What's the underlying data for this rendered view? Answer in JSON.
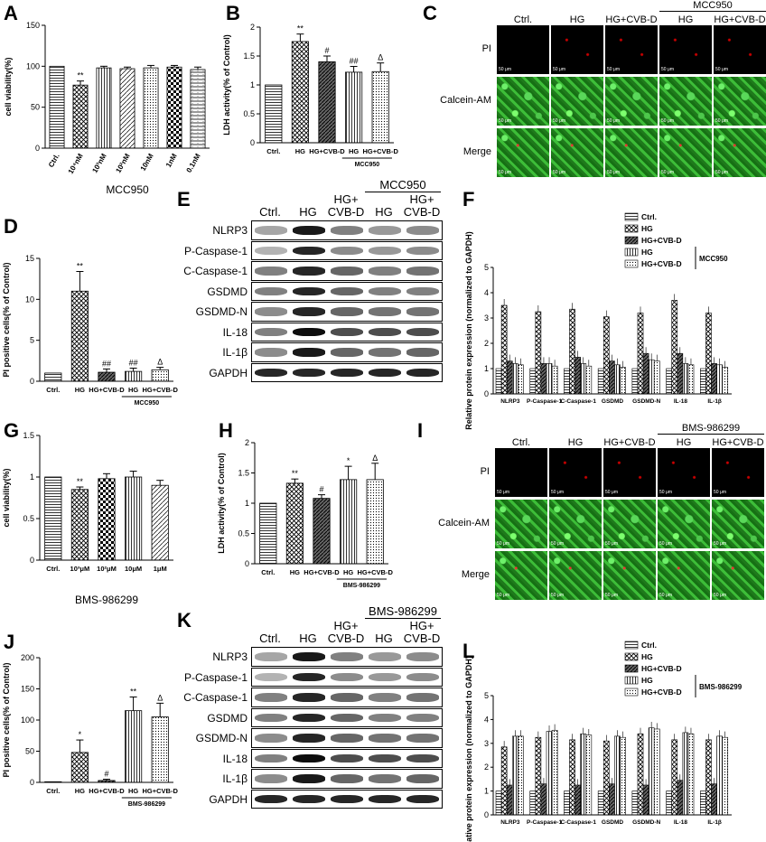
{
  "panels": {
    "A": "A",
    "B": "B",
    "C": "C",
    "D": "D",
    "E": "E",
    "F": "F",
    "G": "G",
    "H": "H",
    "I": "I",
    "J": "J",
    "K": "K",
    "L": "L"
  },
  "chart_data": [
    {
      "id": "A",
      "type": "bar",
      "ylabel": "cell viability(%)",
      "xlabel": "MCC950",
      "categories": [
        "Ctrl.",
        "10⁴nM",
        "10³nM",
        "10²nM",
        "10nM",
        "1nM",
        "0.1nM"
      ],
      "values": [
        100,
        77,
        98,
        97,
        98,
        99,
        96
      ],
      "errors": [
        0,
        5,
        2,
        2,
        3,
        2,
        3
      ],
      "ylim": [
        0,
        150
      ],
      "yticks": [
        0,
        50,
        100,
        150
      ],
      "annotations": [
        "",
        "**",
        "",
        "",
        "",
        "",
        ""
      ]
    },
    {
      "id": "B",
      "type": "bar",
      "ylabel": "LDH activity(% of Control)",
      "categories": [
        "Ctrl.",
        "HG",
        "HG+CVB-D",
        "HG",
        "HG+CVB-D"
      ],
      "group_label": "MCC950",
      "values": [
        1.0,
        1.75,
        1.4,
        1.22,
        1.23
      ],
      "errors": [
        0,
        0.13,
        0.1,
        0.1,
        0.15
      ],
      "ylim": [
        0,
        2.0
      ],
      "yticks": [
        0.0,
        0.5,
        1.0,
        1.5,
        2.0
      ],
      "annotations": [
        "",
        "**",
        "#",
        "##",
        "Δ"
      ]
    },
    {
      "id": "D",
      "type": "bar",
      "ylabel": "PI positive cells(% of Control)",
      "categories": [
        "Ctrl.",
        "HG",
        "HG+CVB-D",
        "HG",
        "HG+CVB-D"
      ],
      "group_label": "MCC950",
      "values": [
        1.0,
        11.0,
        1.1,
        1.2,
        1.4
      ],
      "errors": [
        0,
        2.4,
        0.4,
        0.4,
        0.3
      ],
      "ylim": [
        0,
        15
      ],
      "yticks": [
        0,
        5,
        10,
        15
      ],
      "annotations": [
        "",
        "**",
        "##",
        "##",
        "Δ"
      ]
    },
    {
      "id": "F",
      "type": "bar",
      "ylabel": "Relative protein expression (normalized to GAPDH)",
      "categories": [
        "NLRP3",
        "P-Caspase-1",
        "C-Caspase-1",
        "GSDMD",
        "GSDMD-N",
        "IL-18",
        "IL-1β"
      ],
      "legend": [
        "Ctrl.",
        "HG",
        "HG+CVB-D",
        "HG",
        "HG+CVB-D"
      ],
      "legend_group": "MCC950",
      "series": [
        {
          "values": [
            1,
            1,
            1,
            1,
            1,
            1,
            1
          ]
        },
        {
          "values": [
            3.5,
            3.25,
            3.35,
            3.05,
            3.2,
            3.7,
            3.2
          ]
        },
        {
          "values": [
            1.3,
            1.2,
            1.45,
            1.3,
            1.6,
            1.6,
            1.2
          ]
        },
        {
          "values": [
            1.2,
            1.2,
            1.2,
            1.15,
            1.35,
            1.2,
            1.15
          ]
        },
        {
          "values": [
            1.15,
            1.1,
            1.1,
            1.05,
            1.3,
            1.15,
            1.05
          ]
        }
      ],
      "ylim": [
        0,
        5
      ],
      "yticks": [
        0,
        1,
        2,
        3,
        4,
        5
      ]
    },
    {
      "id": "G",
      "type": "bar",
      "ylabel": "cell viability(%)",
      "xlabel": "BMS-986299",
      "categories": [
        "Ctrl.",
        "10³μM",
        "10²μM",
        "10μM",
        "1μM"
      ],
      "values": [
        1.0,
        0.85,
        0.98,
        1.0,
        0.9
      ],
      "errors": [
        0,
        0.03,
        0.06,
        0.07,
        0.06
      ],
      "ylim": [
        0,
        1.5
      ],
      "yticks": [
        0.0,
        0.5,
        1.0,
        1.5
      ],
      "annotations": [
        "",
        "**",
        "",
        "",
        ""
      ]
    },
    {
      "id": "H",
      "type": "bar",
      "ylabel": "LDH activity(% of Control)",
      "categories": [
        "Ctrl.",
        "HG",
        "HG+CVB-D",
        "HG",
        "HG+CVB-D"
      ],
      "group_label": "BMS-986299",
      "values": [
        1.0,
        1.33,
        1.08,
        1.39,
        1.39
      ],
      "errors": [
        0,
        0.07,
        0.06,
        0.22,
        0.27
      ],
      "ylim": [
        0,
        2.0
      ],
      "yticks": [
        0.0,
        0.5,
        1.0,
        1.5,
        2.0
      ],
      "annotations": [
        "",
        "**",
        "#",
        "*",
        "Δ"
      ]
    },
    {
      "id": "J",
      "type": "bar",
      "ylabel": "PI positive cells(% of Control)",
      "categories": [
        "Ctrl.",
        "HG",
        "HG+CVB-D",
        "HG",
        "HG+CVB-D"
      ],
      "group_label": "BMS-986299",
      "values": [
        1,
        48,
        3,
        115,
        105
      ],
      "errors": [
        0,
        20,
        2,
        22,
        22
      ],
      "ylim": [
        0,
        200
      ],
      "yticks": [
        0,
        50,
        100,
        150,
        200
      ],
      "annotations": [
        "",
        "*",
        "#",
        "**",
        "Δ"
      ]
    },
    {
      "id": "L",
      "type": "bar",
      "ylabel": "Relative protein expression (normalized to GAPDH)",
      "categories": [
        "NLRP3",
        "P-Caspase-1",
        "C-Caspase-1",
        "GSDMD",
        "GSDMD-N",
        "IL-18",
        "IL-1β"
      ],
      "legend": [
        "Ctrl.",
        "HG",
        "HG+CVB-D",
        "HG",
        "HG+CVB-D"
      ],
      "legend_group": "BMS-986299",
      "series": [
        {
          "values": [
            1,
            1,
            1,
            1,
            1,
            1,
            1
          ]
        },
        {
          "values": [
            2.85,
            3.25,
            3.15,
            3.1,
            3.4,
            3.15,
            3.15
          ]
        },
        {
          "values": [
            1.25,
            1.3,
            1.25,
            1.3,
            1.25,
            1.45,
            1.3
          ]
        },
        {
          "values": [
            3.3,
            3.5,
            3.4,
            3.3,
            3.65,
            3.45,
            3.3
          ]
        },
        {
          "values": [
            3.3,
            3.55,
            3.35,
            3.25,
            3.6,
            3.4,
            3.25
          ]
        }
      ],
      "ylim": [
        0,
        5
      ],
      "yticks": [
        0,
        1,
        2,
        3,
        4,
        5
      ]
    }
  ],
  "micro_C": {
    "cols": [
      "Ctrl.",
      "HG",
      "HG+CVB-D",
      "HG",
      "HG+CVB-D"
    ],
    "group": "MCC950",
    "rows": [
      "PI",
      "Calcein-AM",
      "Merge"
    ],
    "scale": "50 μm"
  },
  "micro_I": {
    "cols": [
      "Ctrl.",
      "HG",
      "HG+CVB-D",
      "HG",
      "HG+CVB-D"
    ],
    "group": "BMS-986299",
    "rows": [
      "PI",
      "Calcein-AM",
      "Merge"
    ],
    "scale": "50 μm"
  },
  "blot_E": {
    "cols": [
      "Ctrl.",
      "HG",
      "HG+\nCVB-D",
      "HG",
      "HG+\nCVB-D"
    ],
    "group": "MCC950",
    "rows": [
      "NLRP3",
      "P-Caspase-1",
      "C-Caspase-1",
      "GSDMD",
      "GSDMD-N",
      "IL-18",
      "IL-1β",
      "GAPDH"
    ]
  },
  "blot_K": {
    "cols": [
      "Ctrl.",
      "HG",
      "HG+\nCVB-D",
      "HG",
      "HG+\nCVB-D"
    ],
    "group": "BMS-986299",
    "rows": [
      "NLRP3",
      "P-Caspase-1",
      "C-Caspase-1",
      "GSDMD",
      "GSDMD-N",
      "IL-18",
      "IL-1β",
      "GAPDH"
    ]
  }
}
